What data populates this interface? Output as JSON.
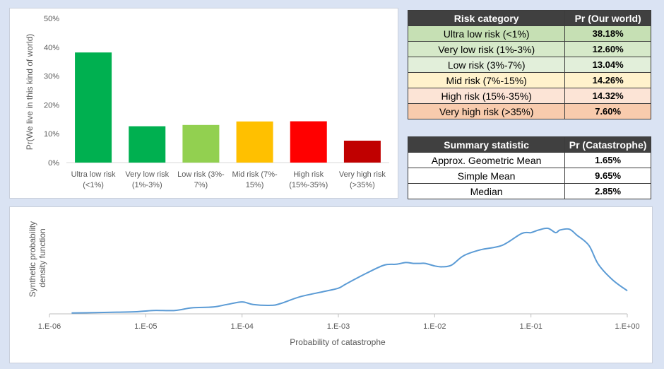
{
  "colors": {
    "background": "#dae3f3",
    "bars": [
      "#00b050",
      "#00b050",
      "#92d050",
      "#ffc000",
      "#ff0000",
      "#c00000"
    ],
    "line": "#5b9bd5"
  },
  "bar_ticks": [
    "0%",
    "10%",
    "20%",
    "30%",
    "40%",
    "50%"
  ],
  "pdf_ticks": [
    "1.E-06",
    "1.E-05",
    "1.E-04",
    "1.E-03",
    "1.E-02",
    "1.E-01",
    "1.E+00"
  ],
  "risk_table": {
    "headers": [
      "Risk category",
      "Pr (Our world)"
    ],
    "rows": [
      {
        "label": "Ultra low risk (<1%)",
        "value": "38.18%"
      },
      {
        "label": "Very low risk (1%-3%)",
        "value": "12.60%"
      },
      {
        "label": "Low risk (3%-7%)",
        "value": "13.04%"
      },
      {
        "label": "Mid risk (7%-15%)",
        "value": "14.26%"
      },
      {
        "label": "High risk (15%-35%)",
        "value": "14.32%"
      },
      {
        "label": "Very high risk (>35%)",
        "value": "7.60%"
      }
    ]
  },
  "summary_table": {
    "headers": [
      "Summary statistic",
      "Pr (Catastrophe)"
    ],
    "rows": [
      {
        "label": "Approx. Geometric Mean",
        "value": "1.65%"
      },
      {
        "label": "Simple Mean",
        "value": "9.65%"
      },
      {
        "label": "Median",
        "value": "2.85%"
      }
    ]
  },
  "chart_data": [
    {
      "type": "bar",
      "title": "",
      "xlabel": "",
      "ylabel": "Pr(We live in this kind of world)",
      "ylim": [
        0,
        50
      ],
      "grid": false,
      "categories": [
        [
          "Ultra low risk",
          "(<1%)"
        ],
        [
          "Very low risk",
          "(1%-3%)"
        ],
        [
          "Low risk (3%-",
          "7%)"
        ],
        [
          "Mid risk (7%-",
          "15%)"
        ],
        [
          "High risk",
          "(15%-35%)"
        ],
        [
          "Very high risk",
          "(>35%)"
        ]
      ],
      "values": [
        38.18,
        12.6,
        13.04,
        14.26,
        14.32,
        7.6
      ]
    },
    {
      "type": "line",
      "title": "",
      "xlabel": "Probability of catastrophe",
      "ylabel": "Synthetic probability density function",
      "x_scale": "log10",
      "xlim": [
        1e-06,
        1
      ],
      "y_ticks_shown": false,
      "grid": false,
      "x": [
        1.7e-06,
        3e-06,
        5e-06,
        8e-06,
        1.2e-05,
        2e-05,
        3e-05,
        5e-05,
        7e-05,
        0.0001,
        0.00013,
        0.0002,
        0.00025,
        0.0004,
        0.0007,
        0.001,
        0.0012,
        0.002,
        0.003,
        0.004,
        0.005,
        0.006,
        0.007,
        0.008,
        0.01,
        0.012,
        0.015,
        0.02,
        0.03,
        0.05,
        0.08,
        0.1,
        0.12,
        0.15,
        0.18,
        0.2,
        0.25,
        0.3,
        0.4,
        0.5,
        0.7,
        1.0
      ],
      "y": [
        0.01,
        0.015,
        0.02,
        0.025,
        0.04,
        0.04,
        0.07,
        0.08,
        0.11,
        0.14,
        0.11,
        0.1,
        0.12,
        0.2,
        0.26,
        0.3,
        0.35,
        0.48,
        0.57,
        0.58,
        0.6,
        0.59,
        0.59,
        0.59,
        0.56,
        0.55,
        0.57,
        0.68,
        0.75,
        0.8,
        0.94,
        0.95,
        0.98,
        1.0,
        0.95,
        0.98,
        0.99,
        0.92,
        0.8,
        0.58,
        0.4,
        0.27
      ]
    }
  ]
}
